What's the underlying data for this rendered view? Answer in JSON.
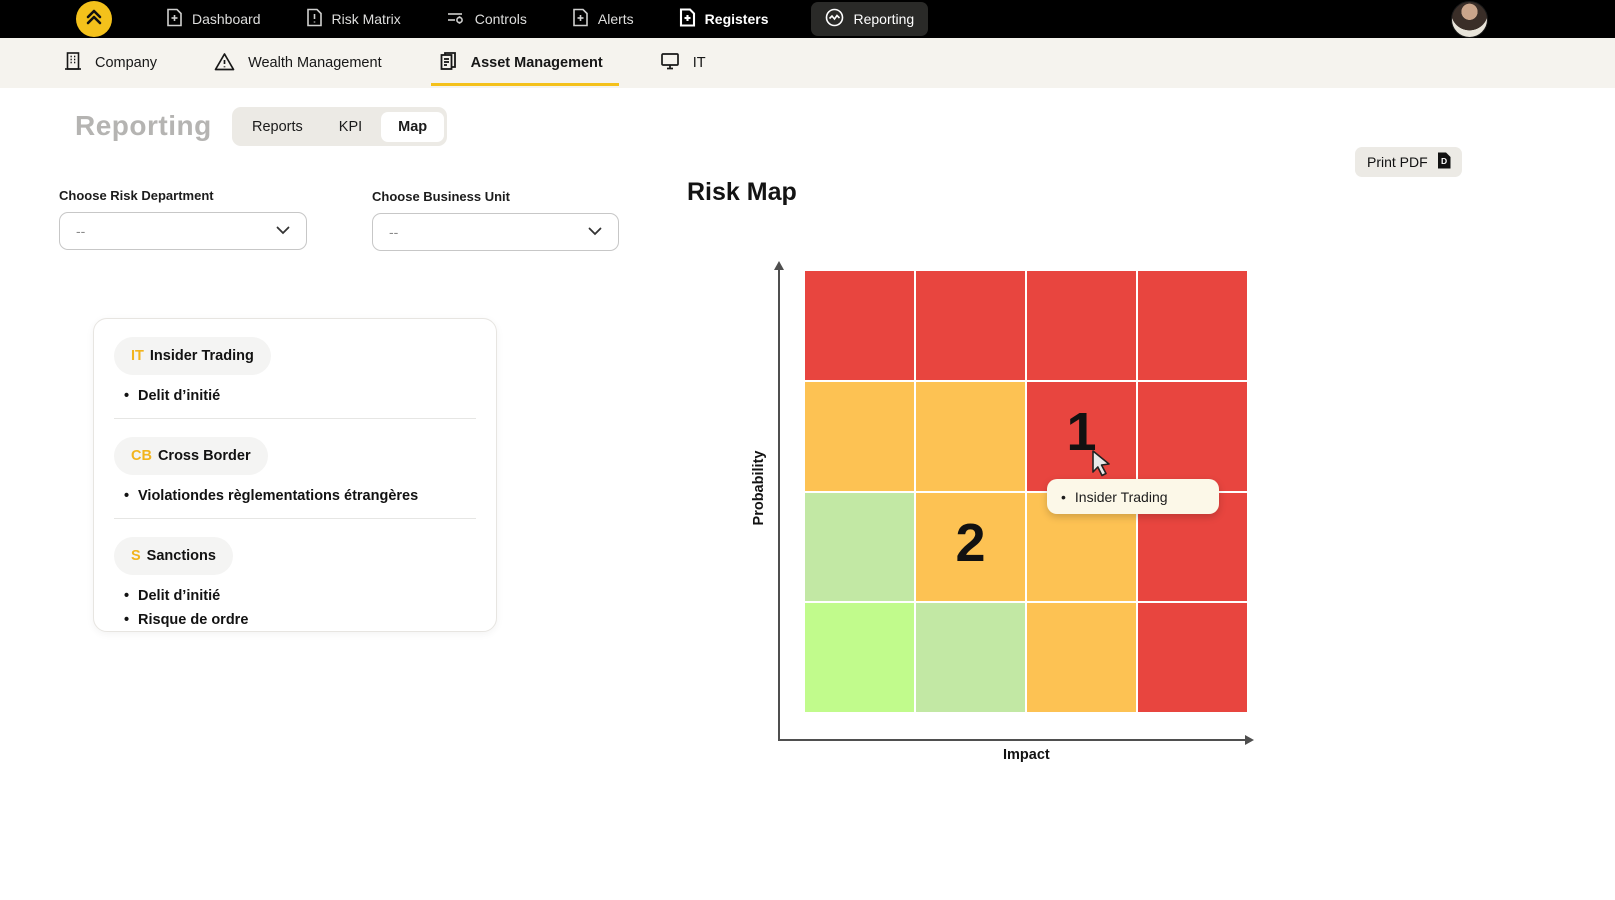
{
  "top_nav": {
    "items": [
      {
        "label": "Dashboard"
      },
      {
        "label": "Risk Matrix"
      },
      {
        "label": "Controls"
      },
      {
        "label": "Alerts"
      },
      {
        "label": "Registers"
      },
      {
        "label": "Reporting"
      }
    ],
    "active_item": "Reporting"
  },
  "unit_nav": {
    "items": [
      {
        "label": "Company"
      },
      {
        "label": "Wealth Management"
      },
      {
        "label": "Asset Management"
      },
      {
        "label": "IT"
      }
    ],
    "active_item": "Asset Management"
  },
  "page": {
    "title": "Reporting"
  },
  "view_tabs": {
    "items": [
      {
        "label": "Reports"
      },
      {
        "label": "KPI"
      },
      {
        "label": "Map"
      }
    ],
    "active_item": "Map"
  },
  "toolbar": {
    "print_label": "Print PDF"
  },
  "filters": {
    "risk_department": {
      "label": "Choose Risk Department",
      "value": "--"
    },
    "business_unit": {
      "label": "Choose Business Unit",
      "value": "--"
    }
  },
  "legend_card": {
    "groups": [
      {
        "abbr": "IT",
        "name": "Insider Trading",
        "items": [
          "Delit d’initié"
        ]
      },
      {
        "abbr": "CB",
        "name": "Cross Border",
        "items": [
          "Violationdes règlementations étrangères"
        ]
      },
      {
        "abbr": "S",
        "name": "Sanctions",
        "items": [
          "Delit d’initié",
          "Risque de ordre"
        ]
      }
    ]
  },
  "risk_map": {
    "title": "Risk Map",
    "tooltip": {
      "text": "Insider Trading"
    }
  },
  "chart_data": {
    "type": "heatmap",
    "title": "Risk Map",
    "xlabel": "Impact",
    "ylabel": "Probability",
    "rows": 4,
    "cols": 4,
    "grid": [
      [
        "red",
        "red",
        "red",
        "red"
      ],
      [
        "orange",
        "orange",
        "red",
        "red"
      ],
      [
        "green",
        "orange",
        "orange",
        "red"
      ],
      [
        "lime",
        "green",
        "orange",
        "red"
      ]
    ],
    "level_colors": {
      "red": "#e8453f",
      "orange": "#fdc253",
      "green": "#c2e8a4",
      "lime": "#c1fb8c"
    },
    "markers": [
      {
        "label": "1",
        "row": 1,
        "col": 2,
        "tooltip": "Insider Trading"
      },
      {
        "label": "2",
        "row": 2,
        "col": 1
      }
    ]
  },
  "colors": {
    "accent_yellow": "#f4c11b",
    "nav_background": "#000000",
    "subnav_background": "#f5f3ee",
    "tooltip_background": "#fcf8e8"
  }
}
